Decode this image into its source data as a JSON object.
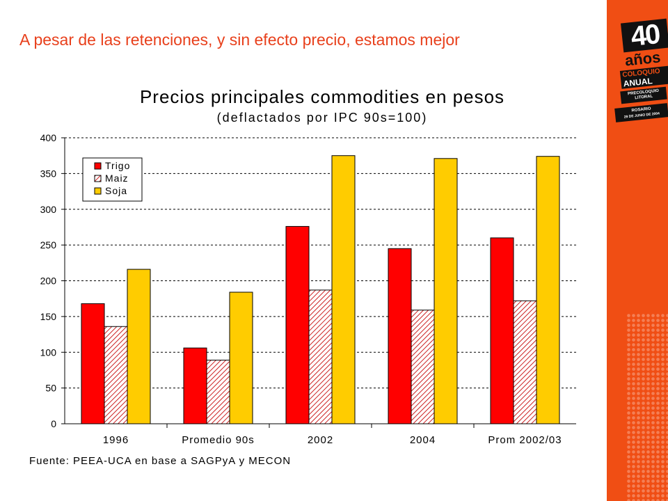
{
  "slide": {
    "title": "A pesar de las retenciones, y sin efecto precio, estamos mejor",
    "source_note": "Fuente: PEEA-UCA en base a SAGPyA y MECON"
  },
  "logo": {
    "number": "40",
    "years": "años",
    "line1": "COLOQUIO",
    "line2": "ANUAL",
    "line3": "PRECOLOQUIO LITORAL",
    "place": "ROSARIO",
    "date": "29 DE JUNIO DE 2004"
  },
  "colors": {
    "accent": "#f04e14",
    "title_text": "#e8401c",
    "trigo": "#ff0000",
    "maiz_hatch": "#cc2222",
    "soja": "#ffcc00"
  },
  "chart_data": {
    "type": "bar",
    "title": "Precios principales commodities en pesos",
    "subtitle": "(deflactados por IPC 90s=100)",
    "categories": [
      "1996",
      "Promedio 90s",
      "2002",
      "2004",
      "Prom 2002/03"
    ],
    "series": [
      {
        "name": "Trigo",
        "values": [
          168,
          106,
          276,
          245,
          260
        ],
        "style": "solid-red"
      },
      {
        "name": "Maiz",
        "values": [
          136,
          89,
          187,
          159,
          172
        ],
        "style": "hatched"
      },
      {
        "name": "Soja",
        "values": [
          216,
          184,
          375,
          371,
          374
        ],
        "style": "solid-yellow"
      }
    ],
    "ylim": [
      0,
      400
    ],
    "yticks": [
      "0",
      "50",
      "100",
      "150",
      "200",
      "250",
      "300",
      "350",
      "400"
    ],
    "grid": "horizontal dashed",
    "legend_position": "top-left",
    "xlabel": "",
    "ylabel": ""
  }
}
